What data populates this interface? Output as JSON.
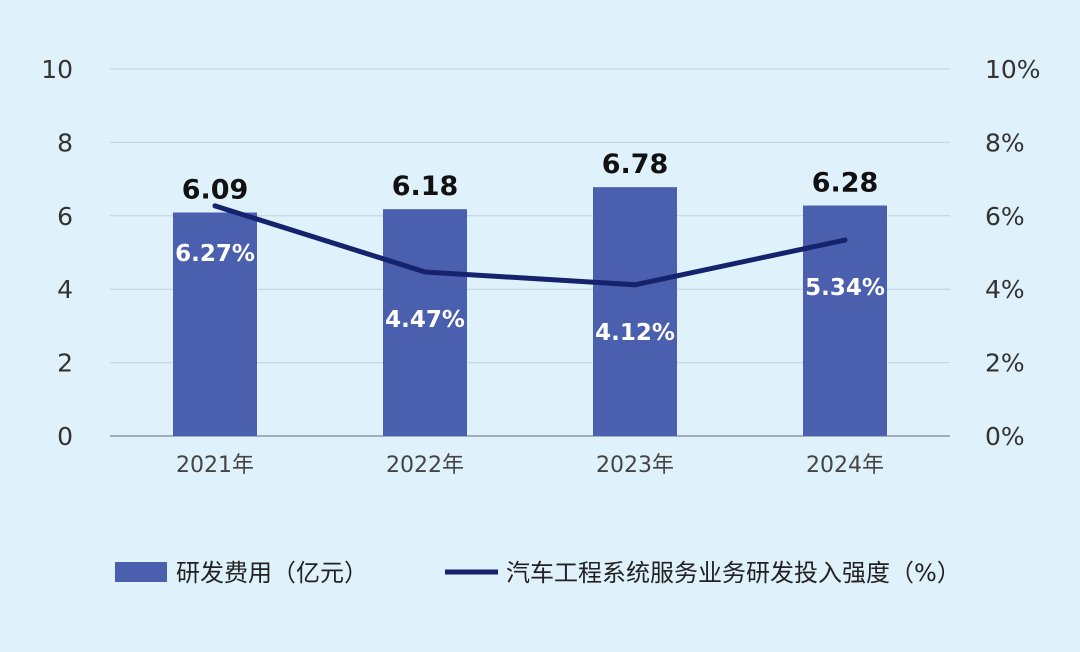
{
  "chart_data": {
    "type": "bar",
    "categories": [
      "2021年",
      "2022年",
      "2023年",
      "2024年"
    ],
    "series": [
      {
        "name": "研发费用（亿元）",
        "type": "bar",
        "axis": "left",
        "values": [
          6.09,
          6.18,
          6.78,
          6.28
        ],
        "labels": [
          "6.09",
          "6.18",
          "6.78",
          "6.28"
        ],
        "color": "#4a5fae"
      },
      {
        "name": "汽车工程系统服务业务研发投入强度（%）",
        "type": "line",
        "axis": "right",
        "values": [
          6.27,
          4.47,
          4.12,
          5.34
        ],
        "labels": [
          "6.27%",
          "4.47%",
          "4.12%",
          "5.34%"
        ],
        "color": "#14236b"
      }
    ],
    "y_left": {
      "lim": [
        0,
        10
      ],
      "ticks": [
        "0",
        "2",
        "4",
        "6",
        "8",
        "10"
      ]
    },
    "y_right": {
      "lim": [
        0,
        10
      ],
      "ticks": [
        "0%",
        "2%",
        "4%",
        "6%",
        "8%",
        "10%"
      ]
    },
    "title": "",
    "xlabel": "",
    "ylabel": "",
    "grid": true,
    "legend": "bottom"
  }
}
